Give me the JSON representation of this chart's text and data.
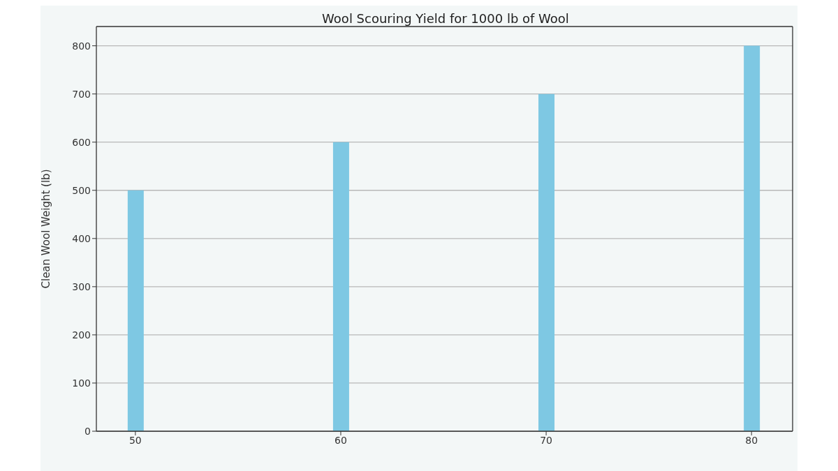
{
  "chart_data": {
    "type": "bar",
    "title": "Wool Scouring Yield for 1000 lb of Wool",
    "ylabel": "Clean Wool Weight (lb)",
    "x": [
      50,
      60,
      70,
      80
    ],
    "values": [
      500,
      600,
      700,
      800
    ],
    "color": "#7ec8e3",
    "xlim": [
      48.1,
      82
    ],
    "xticks": [
      50,
      60,
      70,
      80
    ],
    "ylim": [
      0,
      840
    ],
    "yticks": [
      0,
      100,
      200,
      300,
      400,
      500,
      600,
      700,
      800
    ],
    "grid": "y"
  }
}
